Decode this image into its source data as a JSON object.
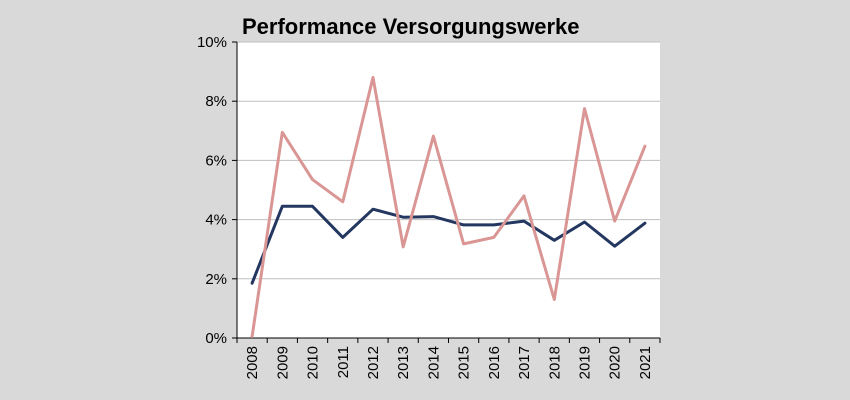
{
  "chart_data": {
    "type": "line",
    "title": "Performance Versorgungswerke",
    "xlabel": "",
    "ylabel": "",
    "categories": [
      "2008",
      "2009",
      "2010",
      "2011",
      "2012",
      "2013",
      "2014",
      "2015",
      "2016",
      "2017",
      "2018",
      "2019",
      "2020",
      "2021"
    ],
    "series": [
      {
        "color": "#243760",
        "values": [
          1.85,
          4.45,
          4.45,
          3.4,
          4.35,
          4.08,
          4.1,
          3.82,
          3.82,
          3.95,
          3.3,
          3.92,
          3.1,
          3.88
        ]
      },
      {
        "color": "#d99694",
        "values": [
          0.05,
          6.95,
          5.35,
          4.6,
          8.8,
          3.08,
          6.82,
          3.18,
          3.4,
          4.8,
          1.3,
          7.75,
          3.95,
          6.48
        ]
      }
    ],
    "ylim": [
      0,
      10
    ],
    "yticks": [
      0,
      2,
      4,
      6,
      8,
      10
    ],
    "ytick_labels": [
      "0%",
      "2%",
      "4%",
      "6%",
      "8%",
      "10%"
    ],
    "grid": true,
    "legend": "none"
  }
}
